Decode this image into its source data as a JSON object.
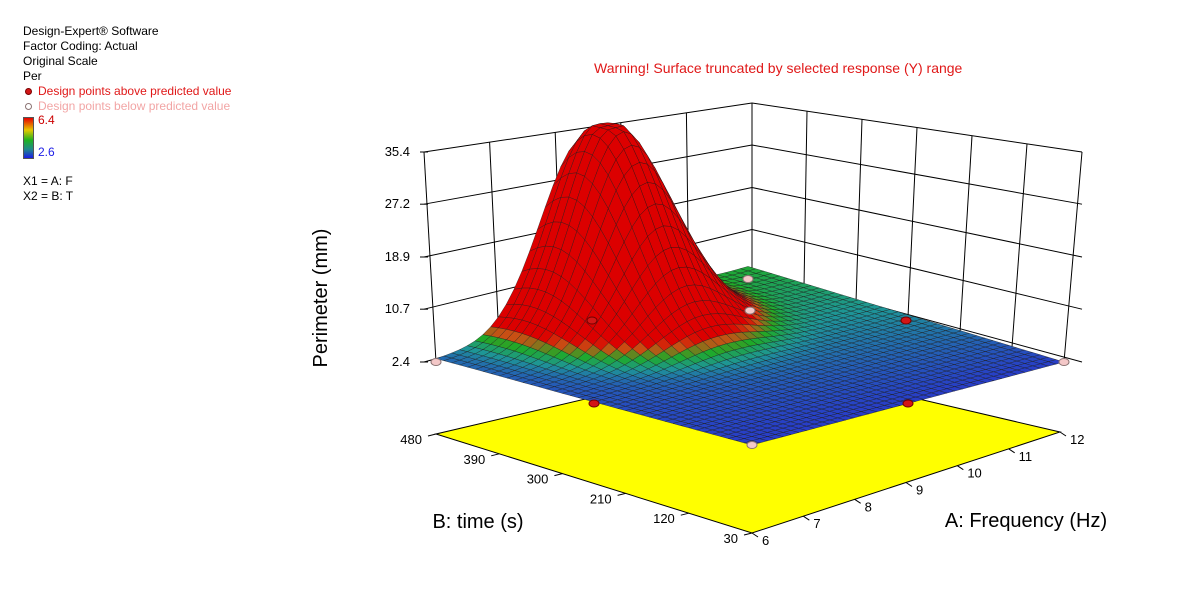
{
  "info": {
    "software": "Design-Expert® Software",
    "coding": "Factor Coding: Actual",
    "scale": "Original Scale",
    "response": "Per",
    "legend_above": "Design points above predicted value",
    "legend_below": "Design points below predicted value",
    "colorbar_max": "6.4",
    "colorbar_min": "2.6",
    "x1": "X1 = A: F",
    "x2": "X2 = B: T"
  },
  "warning": "Warning! Surface truncated by selected response (Y) range",
  "colors": {
    "floor": "#ffff00",
    "point_above": "#d31616",
    "point_below": "#f4c8c8",
    "warning": "#e01818"
  },
  "chart_data": {
    "type": "surface3d",
    "title": "",
    "xlabel": "A: Frequency (Hz)",
    "ylabel": "B: time (s)",
    "zlabel": "Perimeter (mm)",
    "x_ticks": [
      "6",
      "7",
      "8",
      "9",
      "10",
      "11",
      "12"
    ],
    "y_ticks": [
      "30",
      "120",
      "210",
      "300",
      "390",
      "480"
    ],
    "z_ticks": [
      "2.4",
      "10.7",
      "18.9",
      "27.2",
      "35.4"
    ],
    "xlim": [
      6,
      12
    ],
    "ylim": [
      30,
      480
    ],
    "zlim": [
      2.4,
      35.4
    ],
    "grid": true,
    "peak": {
      "x": 12,
      "y": 480,
      "z": 36.3
    },
    "design_points": [
      {
        "x": 6,
        "y": 30,
        "z": 2.4,
        "type": "below"
      },
      {
        "x": 12,
        "y": 30,
        "z": 2.4,
        "type": "below"
      },
      {
        "x": 6,
        "y": 480,
        "z": 2.4,
        "type": "below"
      },
      {
        "x": 12,
        "y": 480,
        "z": 2.4,
        "type": "below"
      },
      {
        "x": 9,
        "y": 30,
        "z": 2.4,
        "type": "above"
      },
      {
        "x": 9,
        "y": 480,
        "z": 2.4,
        "type": "above"
      },
      {
        "x": 6,
        "y": 255,
        "z": 2.4,
        "type": "above"
      },
      {
        "x": 12,
        "y": 255,
        "z": 2.4,
        "type": "above"
      },
      {
        "x": 9,
        "y": 255,
        "z": 11.0,
        "type": "below"
      }
    ]
  }
}
